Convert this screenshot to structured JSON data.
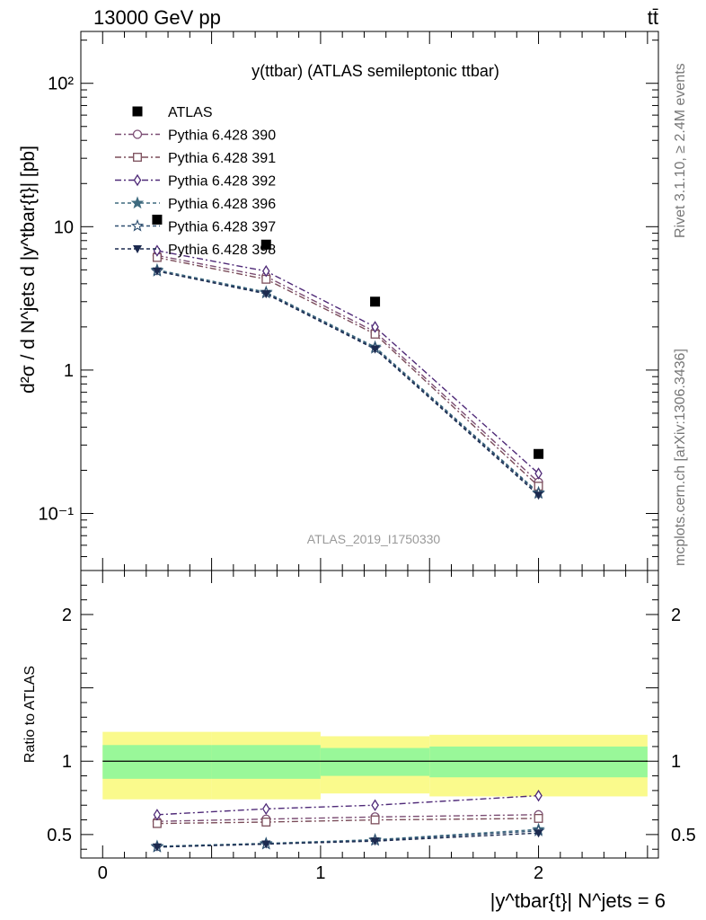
{
  "header": {
    "energy_label": "13000 GeV pp",
    "process_label": "tt̄"
  },
  "side_labels": {
    "rivet": "Rivet 3.1.10, ≥ 2.4M events",
    "mcplots": "mcplots.cern.ch [arXiv:1306.3436]"
  },
  "chart_data": [
    {
      "type": "scatter",
      "title": "y(ttbar) (ATLAS semileptonic ttbar)",
      "watermark": "ATLAS_2019_I1750330",
      "ylabel": "d²σ / d N^jets d |y^tbar{t}| [pb]",
      "yscale": "log",
      "ylim": [
        0.04,
        230
      ],
      "xlim": [
        -0.1,
        2.55
      ],
      "yticks": [
        {
          "v": 0.1,
          "label": "10⁻¹"
        },
        {
          "v": 1,
          "label": "1"
        },
        {
          "v": 10,
          "label": "10"
        },
        {
          "v": 100,
          "label": "10²"
        }
      ],
      "xbins": [
        [
          0,
          0.5
        ],
        [
          0.5,
          1.0
        ],
        [
          1.0,
          1.5
        ],
        [
          1.5,
          2.5
        ]
      ],
      "x": [
        0.25,
        0.75,
        1.25,
        2.0
      ],
      "legend_position": "top-left",
      "series": [
        {
          "name": "ATLAS",
          "marker": "square-filled",
          "color": "#000000",
          "dash": "none",
          "values": [
            11.2,
            7.5,
            3.0,
            0.26
          ]
        },
        {
          "name": "Pythia 6.428 390",
          "marker": "circle-open",
          "color": "#7b4d73",
          "dash": "dashdot",
          "values": [
            6.3,
            4.5,
            1.85,
            0.165
          ]
        },
        {
          "name": "Pythia 6.428 391",
          "marker": "square-open",
          "color": "#7b4d5a",
          "dash": "dashdot",
          "values": [
            6.1,
            4.3,
            1.78,
            0.155
          ]
        },
        {
          "name": "Pythia 6.428 392",
          "marker": "diamond-open",
          "color": "#4f2a78",
          "dash": "dashdot",
          "values": [
            6.8,
            4.9,
            2.0,
            0.19
          ]
        },
        {
          "name": "Pythia 6.428 396",
          "marker": "star-filled",
          "color": "#3e6a7f",
          "dash": "dashed",
          "values": [
            5.0,
            3.5,
            1.45,
            0.14
          ]
        },
        {
          "name": "Pythia 6.428 397",
          "marker": "star-open",
          "color": "#2e4f70",
          "dash": "dashed",
          "values": [
            4.9,
            3.45,
            1.42,
            0.138
          ]
        },
        {
          "name": "Pythia 6.428 398",
          "marker": "triangle-down-filled",
          "color": "#1c2a4f",
          "dash": "dashed",
          "values": [
            4.9,
            3.4,
            1.4,
            0.134
          ]
        }
      ]
    },
    {
      "type": "scatter",
      "ylabel": "Ratio to ATLAS",
      "xlabel": "|y^tbar{t}| N^jets = 6",
      "ylim": [
        0.34,
        2.3
      ],
      "xlim": [
        -0.1,
        2.55
      ],
      "yticks": [
        {
          "v": 0.5,
          "label": "0.5"
        },
        {
          "v": 1,
          "label": "1"
        },
        {
          "v": 2,
          "label": "2"
        }
      ],
      "xticks": [
        {
          "v": 0,
          "label": "0"
        },
        {
          "v": 1,
          "label": "1"
        },
        {
          "v": 2,
          "label": "2"
        }
      ],
      "reference_line": 1,
      "bands": {
        "inner": {
          "color": "#99f899",
          "ranges": [
            [
              0.88,
              1.11
            ],
            [
              0.88,
              1.11
            ],
            [
              0.9,
              1.09
            ],
            [
              0.89,
              1.1
            ]
          ]
        },
        "outer": {
          "color": "#fafa8c",
          "ranges": [
            [
              0.74,
              1.2
            ],
            [
              0.74,
              1.2
            ],
            [
              0.78,
              1.17
            ],
            [
              0.76,
              1.18
            ]
          ]
        }
      },
      "x": [
        0.25,
        0.75,
        1.25,
        2.0
      ],
      "series": [
        {
          "name": "Pythia 6.428 390",
          "values": [
            0.59,
            0.605,
            0.62,
            0.635
          ],
          "yerr": [
            0,
            0,
            0,
            0.02
          ]
        },
        {
          "name": "Pythia 6.428 391",
          "values": [
            0.575,
            0.585,
            0.6,
            0.61
          ],
          "yerr": [
            0,
            0,
            0,
            0.02
          ]
        },
        {
          "name": "Pythia 6.428 392",
          "values": [
            0.635,
            0.675,
            0.7,
            0.765
          ],
          "yerr": [
            0,
            0,
            0,
            0.025
          ]
        },
        {
          "name": "Pythia 6.428 396",
          "values": [
            0.42,
            0.44,
            0.465,
            0.535
          ],
          "yerr": [
            0,
            0,
            0,
            0.025
          ]
        },
        {
          "name": "Pythia 6.428 397",
          "values": [
            0.415,
            0.435,
            0.46,
            0.525
          ],
          "yerr": [
            0,
            0,
            0,
            0.025
          ]
        },
        {
          "name": "Pythia 6.428 398",
          "values": [
            0.415,
            0.435,
            0.455,
            0.51
          ],
          "yerr": [
            0,
            0,
            0,
            0.025
          ]
        }
      ]
    }
  ]
}
